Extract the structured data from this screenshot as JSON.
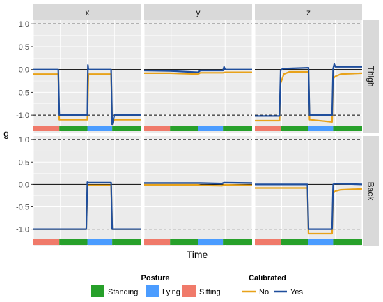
{
  "chart_data": {
    "type": "line",
    "ylabel": "g",
    "xlabel": "Time",
    "ylim": [
      -1.38,
      1.08
    ],
    "xlim": [
      0,
      100
    ],
    "yticks": [
      1.0,
      0.5,
      0.0,
      -0.5,
      -1.0
    ],
    "ytick_labels": [
      "1.0",
      "0.5",
      "0.0",
      "-0.5",
      "-1.0"
    ],
    "col_facets": [
      "x",
      "y",
      "z"
    ],
    "row_facets": [
      "Thigh",
      "Back"
    ],
    "reference_lines": {
      "solid": [
        0
      ],
      "dashed": [
        1,
        -1
      ]
    },
    "legends": {
      "posture": {
        "title": "Posture",
        "items": [
          {
            "label": "Standing",
            "color": "#27a02a"
          },
          {
            "label": "Lying",
            "color": "#4b9cff"
          },
          {
            "label": "Sitting",
            "color": "#f07a6a"
          }
        ]
      },
      "calibrated": {
        "title": "Calibrated",
        "items": [
          {
            "label": "No",
            "color": "#e8a21a"
          },
          {
            "label": "Yes",
            "color": "#1f4e9c"
          }
        ]
      }
    },
    "posture_segments": [
      {
        "posture": "Sitting",
        "x0": 0,
        "x1": 24
      },
      {
        "posture": "Standing",
        "x0": 24,
        "x1": 50
      },
      {
        "posture": "Lying",
        "x0": 50,
        "x1": 73
      },
      {
        "posture": "Standing",
        "x0": 73,
        "x1": 100
      }
    ],
    "panels": [
      {
        "row": "Thigh",
        "col": "x",
        "series": [
          {
            "name": "No",
            "x": [
              0,
              23,
              24,
              26,
              50,
              51,
              72,
              73,
              75,
              100
            ],
            "y": [
              -0.1,
              -0.1,
              -1.1,
              -1.1,
              -1.1,
              -0.1,
              -0.1,
              -1.2,
              -1.1,
              -1.1
            ]
          },
          {
            "name": "Yes",
            "x": [
              0,
              23,
              24,
              26,
              50,
              50.5,
              51,
              72,
              73,
              75,
              100
            ],
            "y": [
              0.0,
              0.0,
              -1.0,
              -1.0,
              -1.0,
              0.1,
              0.0,
              0.0,
              -1.2,
              -1.0,
              -1.0
            ]
          }
        ]
      },
      {
        "row": "Thigh",
        "col": "y",
        "series": [
          {
            "name": "No",
            "x": [
              0,
              24,
              50,
              52,
              73,
              75,
              100
            ],
            "y": [
              -0.08,
              -0.08,
              -0.1,
              -0.07,
              -0.07,
              -0.06,
              -0.06
            ]
          },
          {
            "name": "Yes",
            "x": [
              0,
              24,
              50,
              52,
              73,
              74,
              75,
              100
            ],
            "y": [
              -0.02,
              -0.03,
              -0.06,
              -0.02,
              -0.02,
              0.06,
              0.0,
              0.0
            ]
          }
        ]
      },
      {
        "row": "Thigh",
        "col": "z",
        "series": [
          {
            "name": "No",
            "x": [
              0,
              23,
              24,
              27,
              32,
              50,
              51,
              52,
              72,
              73,
              75,
              80,
              100
            ],
            "y": [
              -1.12,
              -1.12,
              -0.3,
              -0.1,
              -0.05,
              -0.05,
              -1.1,
              -1.1,
              -1.15,
              -0.2,
              -0.15,
              -0.1,
              -0.08
            ]
          },
          {
            "name": "Yes",
            "x": [
              0,
              23,
              24,
              26,
              50,
              51,
              72,
              73,
              74,
              75,
              100
            ],
            "y": [
              -1.02,
              -1.02,
              -0.02,
              0.02,
              0.04,
              -1.0,
              -1.0,
              0.02,
              0.12,
              0.06,
              0.06
            ]
          }
        ]
      },
      {
        "row": "Back",
        "col": "x",
        "series": [
          {
            "name": "No",
            "x": [
              0,
              49,
              50,
              51,
              72,
              73,
              100
            ],
            "y": [
              -1.0,
              -1.0,
              -0.03,
              -0.02,
              -0.02,
              -1.0,
              -1.0
            ]
          },
          {
            "name": "Yes",
            "x": [
              0,
              49,
              50,
              51,
              72,
              73,
              100
            ],
            "y": [
              -1.0,
              -1.0,
              0.05,
              0.04,
              0.04,
              -1.0,
              -1.0
            ]
          }
        ]
      },
      {
        "row": "Back",
        "col": "y",
        "series": [
          {
            "name": "No",
            "x": [
              0,
              50,
              52,
              72,
              74,
              100
            ],
            "y": [
              -0.01,
              -0.01,
              -0.02,
              -0.03,
              -0.01,
              -0.02
            ]
          },
          {
            "name": "Yes",
            "x": [
              0,
              50,
              52,
              72,
              74,
              100
            ],
            "y": [
              0.03,
              0.03,
              0.03,
              0.02,
              0.04,
              0.03
            ]
          }
        ]
      },
      {
        "row": "Back",
        "col": "z",
        "series": [
          {
            "name": "No",
            "x": [
              0,
              49,
              50,
              51,
              72,
              73,
              75,
              80,
              100
            ],
            "y": [
              -0.08,
              -0.08,
              -1.1,
              -1.1,
              -1.1,
              -0.2,
              -0.15,
              -0.12,
              -0.1
            ]
          },
          {
            "name": "Yes",
            "x": [
              0,
              49,
              50,
              51,
              72,
              73,
              75,
              100
            ],
            "y": [
              0.0,
              0.0,
              -1.0,
              -1.0,
              -1.0,
              0.0,
              0.02,
              0.0
            ]
          }
        ]
      }
    ]
  }
}
